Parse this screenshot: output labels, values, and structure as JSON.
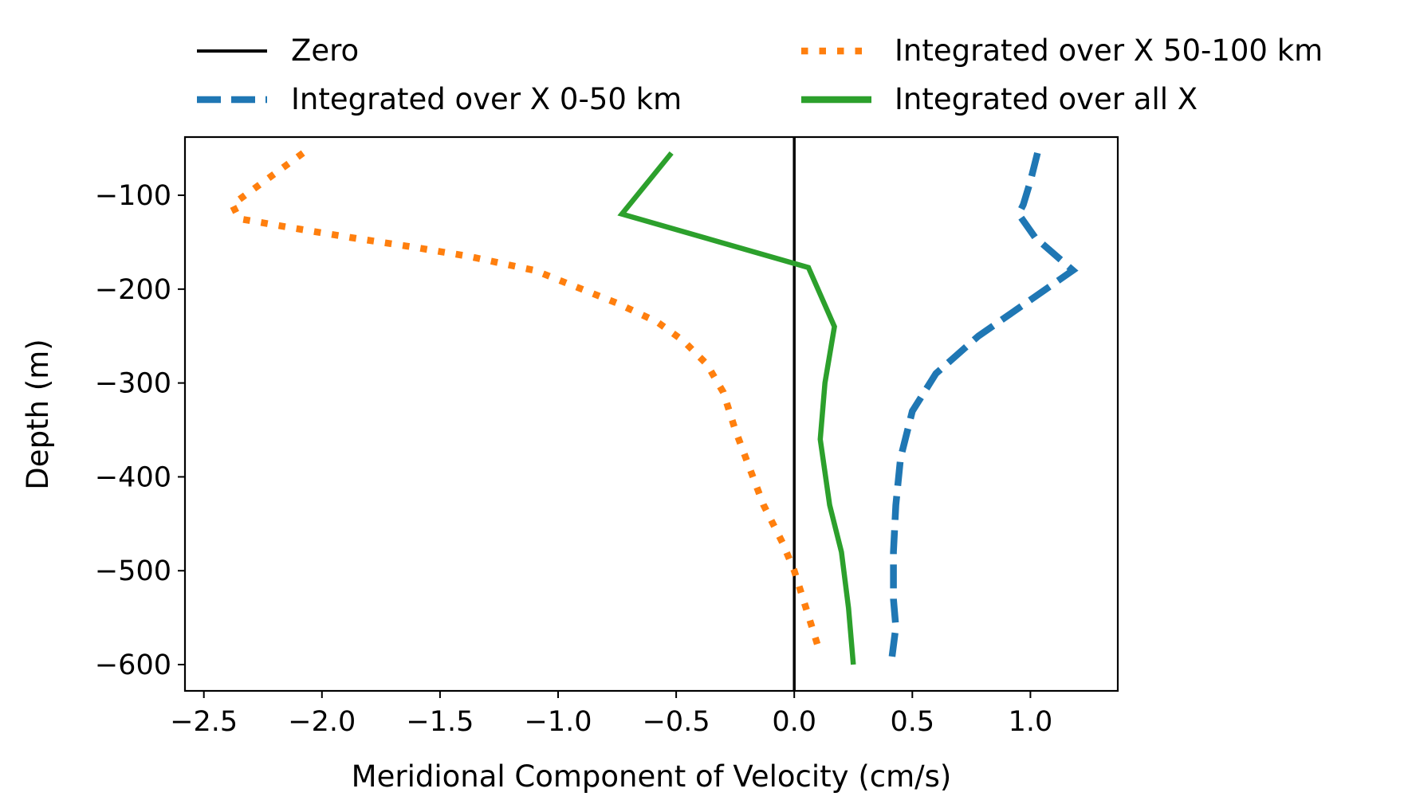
{
  "chart_data": {
    "type": "line",
    "title": "",
    "xlabel": "Meridional Component of Velocity (cm/s)",
    "ylabel": "Depth (m)",
    "xlim": [
      -2.58,
      1.37
    ],
    "ylim": [
      -628,
      -38
    ],
    "xticks": [
      -2.5,
      -2.0,
      -1.5,
      -1.0,
      -0.5,
      0.0,
      0.5,
      1.0
    ],
    "xtick_labels": [
      "−2.5",
      "−2.0",
      "−1.5",
      "−1.0",
      "−0.5",
      "0.0",
      "0.5",
      "1.0"
    ],
    "yticks": [
      -100,
      -200,
      -300,
      -400,
      -500,
      -600
    ],
    "ytick_labels": [
      "−100",
      "−200",
      "−300",
      "−400",
      "−500",
      "−600"
    ],
    "grid": false,
    "legend_position": "above the plot, two columns",
    "series": [
      {
        "name": "Zero",
        "color": "#000000",
        "style": "solid",
        "x": [
          0.0,
          0.0
        ],
        "y": [
          -628,
          -38
        ]
      },
      {
        "name": "Integrated over X 0-50 km",
        "color": "#1f77b4",
        "style": "dashed",
        "x": [
          1.03,
          1.0,
          0.97,
          0.95,
          1.02,
          1.18,
          0.98,
          0.78,
          0.6,
          0.5,
          0.45,
          0.43,
          0.42,
          0.42,
          0.43,
          0.41
        ],
        "y": [
          -55,
          -85,
          -110,
          -120,
          -145,
          -180,
          -215,
          -250,
          -290,
          -330,
          -380,
          -430,
          -480,
          -530,
          -560,
          -600
        ]
      },
      {
        "name": "Integrated over X 50-100 km",
        "color": "#ff7f0e",
        "style": "dotted",
        "x": [
          -2.08,
          -2.38,
          -2.35,
          -2.12,
          -1.88,
          -1.62,
          -1.38,
          -1.1,
          -0.95,
          -0.75,
          -0.58,
          -0.47,
          -0.37,
          -0.3,
          -0.25,
          -0.19,
          -0.13,
          -0.05,
          0.0,
          0.05,
          0.1
        ],
        "y": [
          -55,
          -110,
          -125,
          -135,
          -145,
          -155,
          -165,
          -180,
          -195,
          -215,
          -235,
          -255,
          -280,
          -310,
          -350,
          -390,
          -430,
          -470,
          -500,
          -540,
          -580
        ]
      },
      {
        "name": "Integrated over all X",
        "color": "#2ca02c",
        "style": "solid",
        "x": [
          -0.52,
          -0.73,
          0.06,
          0.17,
          0.13,
          0.11,
          0.15,
          0.2,
          0.23,
          0.25
        ],
        "y": [
          -55,
          -120,
          -177,
          -240,
          -300,
          -360,
          -430,
          -480,
          -540,
          -600
        ]
      }
    ]
  }
}
